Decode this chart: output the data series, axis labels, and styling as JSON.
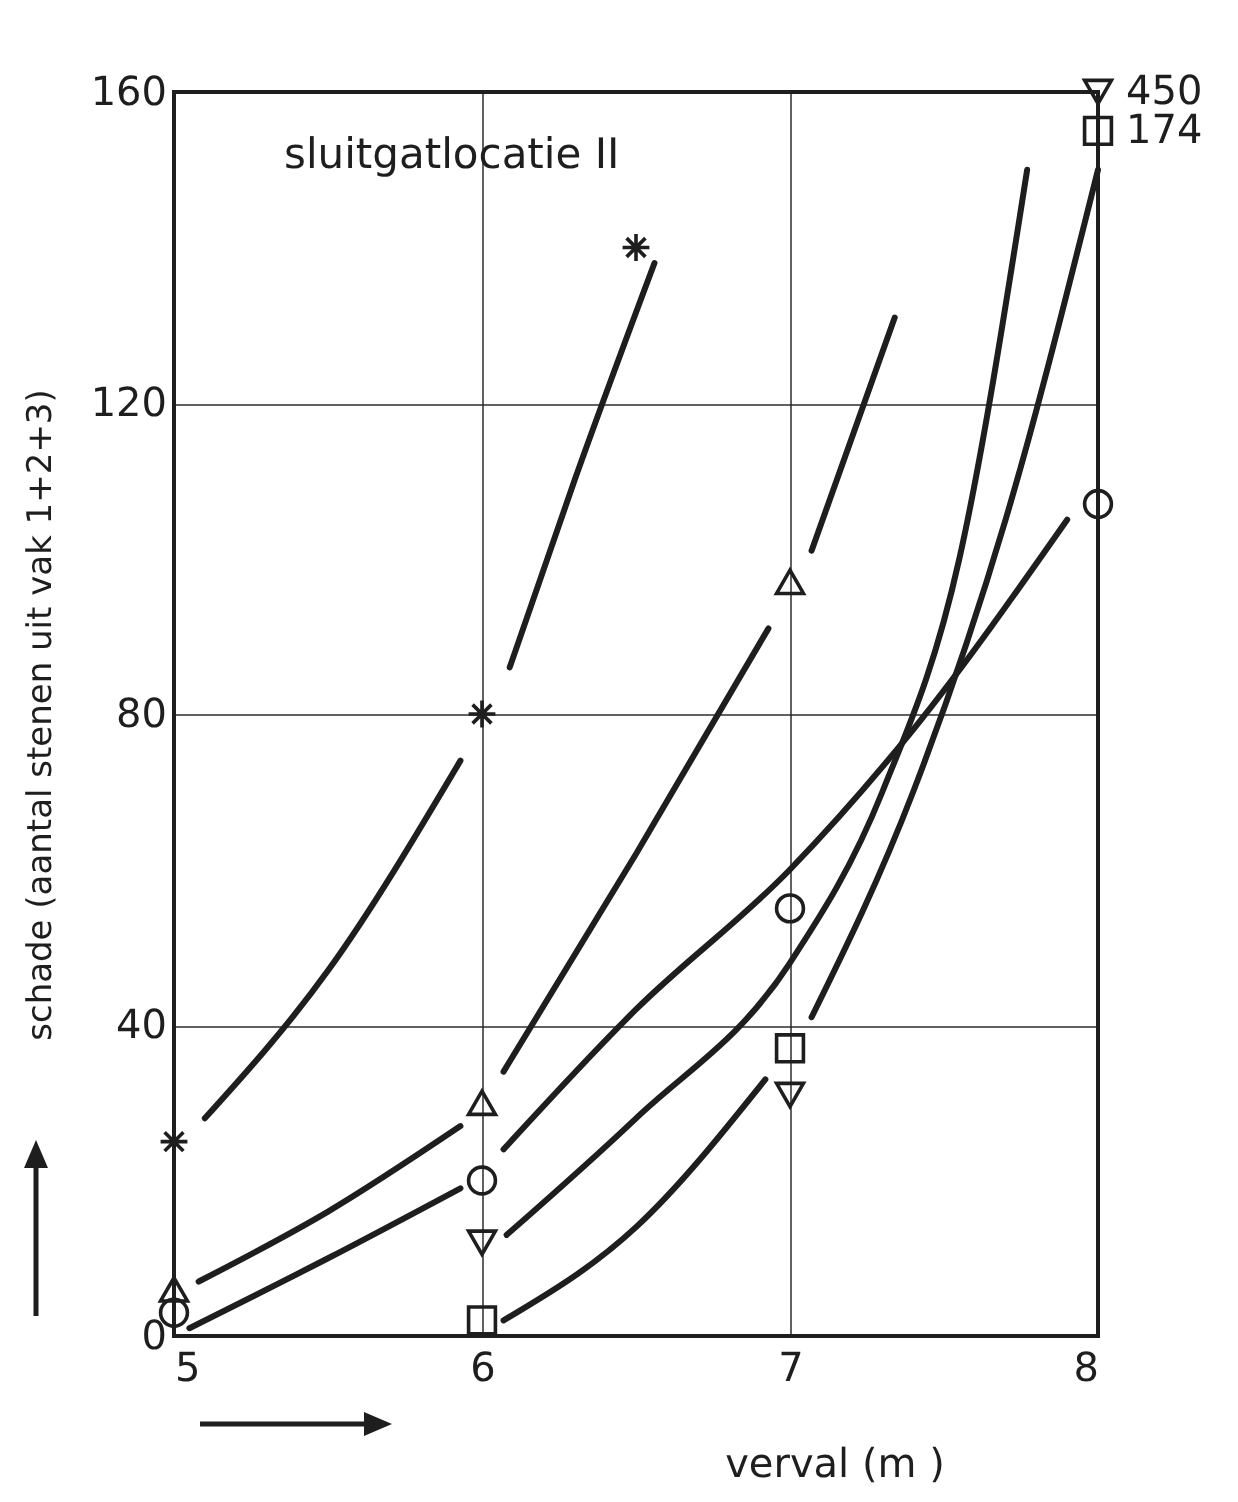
{
  "chart_data": {
    "type": "scatter",
    "xlabel": "verval (m )",
    "ylabel": "schade (aantal stenen uit vak 1+2+3)",
    "annotations": [
      "sluitgatlocatie II",
      {
        "text": "450",
        "x": 8,
        "y": 160
      },
      {
        "text": "174",
        "x": 8,
        "y": 155
      }
    ],
    "xlim": [
      5,
      8
    ],
    "ylim": [
      0,
      160
    ],
    "xticks": [
      5,
      6,
      7,
      8
    ],
    "yticks": [
      0,
      40,
      80,
      120,
      160
    ],
    "grid": true,
    "series": [
      {
        "marker": "cross",
        "color": "#1e1e1e",
        "x": [
          5,
          6,
          6.5
        ],
        "values": [
          25,
          80,
          140
        ]
      },
      {
        "marker": "triangle",
        "color": "#1e1e1e",
        "x": [
          5,
          6,
          7
        ],
        "values": [
          6,
          30,
          97
        ]
      },
      {
        "marker": "circle",
        "color": "#1e1e1e",
        "x": [
          5,
          6,
          7,
          8
        ],
        "values": [
          3,
          20,
          55,
          107
        ]
      },
      {
        "marker": "triangle-down",
        "color": "#1e1e1e",
        "x": [
          6,
          7,
          8
        ],
        "values": [
          12,
          31,
          160
        ]
      },
      {
        "marker": "square",
        "color": "#1e1e1e",
        "x": [
          6,
          7,
          8
        ],
        "values": [
          2,
          37,
          155
        ]
      },
      {
        "type": "line",
        "color": "#1e1e1e",
        "x": [
          5.1,
          5.5,
          5.93,
          6,
          6.09,
          6.3,
          6.56
        ],
        "values": [
          28,
          47,
          74,
          null,
          86,
          110,
          138
        ]
      },
      {
        "type": "line",
        "color": "#1e1e1e",
        "x": [
          5.08,
          5.5,
          5.93,
          6,
          6.07,
          6.5,
          6.93,
          7,
          7.07,
          7.34
        ],
        "values": [
          7,
          16,
          27,
          null,
          34,
          62,
          91,
          null,
          101,
          131
        ]
      },
      {
        "type": "line",
        "color": "#1e1e1e",
        "x": [
          5.05,
          5.5,
          5.93,
          6,
          6.07,
          6.5,
          7,
          7.4,
          7.9
        ],
        "values": [
          1,
          10,
          19,
          null,
          24,
          42,
          60,
          78,
          105
        ]
      },
      {
        "type": "line",
        "color": "#1e1e1e",
        "x": [
          6.08,
          6.5,
          7,
          7.3,
          7.55,
          7.77
        ],
        "values": [
          13,
          28,
          48,
          70,
          100,
          150
        ]
      },
      {
        "type": "line",
        "color": "#1e1e1e",
        "x": [
          6.07,
          6.5,
          6.92,
          7,
          7.07,
          7.4,
          7.7,
          8
        ],
        "values": [
          2,
          14,
          33,
          null,
          41,
          70,
          105,
          150
        ]
      }
    ]
  }
}
